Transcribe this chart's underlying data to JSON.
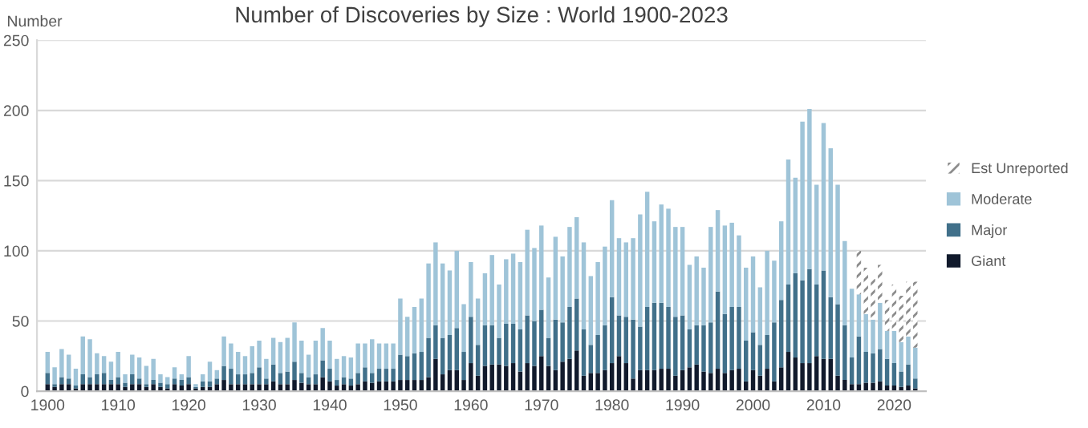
{
  "chart_data": {
    "type": "bar",
    "stacked": true,
    "title": "Number of Discoveries by Size : World 1900-2023",
    "ylabel": "Number",
    "x": [
      1900,
      1901,
      1902,
      1903,
      1904,
      1905,
      1906,
      1907,
      1908,
      1909,
      1910,
      1911,
      1912,
      1913,
      1914,
      1915,
      1916,
      1917,
      1918,
      1919,
      1920,
      1921,
      1922,
      1923,
      1924,
      1925,
      1926,
      1927,
      1928,
      1929,
      1930,
      1931,
      1932,
      1933,
      1934,
      1935,
      1936,
      1937,
      1938,
      1939,
      1940,
      1941,
      1942,
      1943,
      1944,
      1945,
      1946,
      1947,
      1948,
      1949,
      1950,
      1951,
      1952,
      1953,
      1954,
      1955,
      1956,
      1957,
      1958,
      1959,
      1960,
      1961,
      1962,
      1963,
      1964,
      1965,
      1966,
      1967,
      1968,
      1969,
      1970,
      1971,
      1972,
      1973,
      1974,
      1975,
      1976,
      1977,
      1978,
      1979,
      1980,
      1981,
      1982,
      1983,
      1984,
      1985,
      1986,
      1987,
      1988,
      1989,
      1990,
      1991,
      1992,
      1993,
      1994,
      1995,
      1996,
      1997,
      1998,
      1999,
      2000,
      2001,
      2002,
      2003,
      2004,
      2005,
      2006,
      2007,
      2008,
      2009,
      2010,
      2011,
      2012,
      2013,
      2014,
      2015,
      2016,
      2017,
      2018,
      2019,
      2020,
      2021,
      2022,
      2023
    ],
    "series": [
      {
        "name": "Giant",
        "color": "#111a2c",
        "values": [
          5,
          3,
          5,
          5,
          2,
          5,
          5,
          5,
          5,
          5,
          5,
          3,
          5,
          5,
          3,
          5,
          3,
          2,
          5,
          4,
          5,
          2,
          3,
          3,
          5,
          8,
          5,
          5,
          5,
          5,
          5,
          5,
          7,
          5,
          5,
          8,
          6,
          5,
          5,
          10,
          7,
          4,
          5,
          4,
          5,
          7,
          6,
          7,
          7,
          7,
          8,
          8,
          8,
          8,
          10,
          23,
          12,
          15,
          15,
          8,
          20,
          11,
          18,
          19,
          19,
          18,
          20,
          14,
          20,
          18,
          25,
          18,
          15,
          21,
          23,
          29,
          11,
          13,
          13,
          15,
          20,
          25,
          20,
          9,
          15,
          15,
          15,
          16,
          16,
          11,
          15,
          17,
          19,
          14,
          13,
          16,
          13,
          15,
          16,
          7,
          15,
          11,
          16,
          7,
          17,
          28,
          24,
          20,
          20,
          25,
          23,
          23,
          11,
          8,
          5,
          5,
          6,
          6,
          7,
          4,
          4,
          3,
          4,
          2
        ]
      },
      {
        "name": "Major",
        "color": "#41708a",
        "values": [
          8,
          2,
          5,
          4,
          2,
          7,
          5,
          7,
          8,
          3,
          5,
          3,
          7,
          4,
          2,
          3,
          3,
          3,
          4,
          4,
          5,
          1,
          4,
          4,
          4,
          10,
          11,
          7,
          7,
          8,
          12,
          4,
          12,
          8,
          9,
          13,
          7,
          5,
          7,
          12,
          9,
          4,
          5,
          5,
          8,
          10,
          7,
          9,
          9,
          9,
          18,
          17,
          19,
          20,
          28,
          24,
          26,
          25,
          30,
          20,
          33,
          22,
          29,
          28,
          19,
          30,
          28,
          30,
          34,
          32,
          33,
          20,
          36,
          28,
          37,
          37,
          33,
          20,
          27,
          32,
          47,
          29,
          33,
          42,
          31,
          45,
          48,
          47,
          44,
          42,
          39,
          27,
          28,
          33,
          36,
          55,
          42,
          45,
          44,
          29,
          27,
          22,
          24,
          42,
          48,
          48,
          60,
          59,
          67,
          51,
          63,
          44,
          51,
          39,
          19,
          34,
          22,
          21,
          23,
          19,
          16,
          11,
          15,
          7
        ]
      },
      {
        "name": "Moderate",
        "color": "#9fc4d8",
        "values": [
          15,
          12,
          20,
          17,
          12,
          27,
          27,
          15,
          12,
          13,
          18,
          6,
          14,
          15,
          13,
          15,
          6,
          5,
          8,
          4,
          15,
          2,
          5,
          14,
          6,
          21,
          18,
          16,
          13,
          19,
          19,
          14,
          19,
          22,
          24,
          28,
          23,
          16,
          24,
          23,
          20,
          15,
          15,
          15,
          21,
          17,
          24,
          18,
          18,
          18,
          40,
          28,
          33,
          38,
          53,
          59,
          53,
          46,
          55,
          34,
          39,
          33,
          37,
          50,
          38,
          46,
          50,
          48,
          61,
          52,
          60,
          43,
          59,
          47,
          57,
          58,
          62,
          49,
          52,
          56,
          69,
          55,
          53,
          58,
          80,
          82,
          58,
          70,
          70,
          64,
          63,
          46,
          49,
          41,
          68,
          58,
          63,
          60,
          51,
          52,
          54,
          41,
          60,
          44,
          56,
          89,
          68,
          113,
          114,
          71,
          105,
          106,
          85,
          60,
          49,
          30,
          27,
          24,
          33,
          20,
          23,
          21,
          20,
          22
        ]
      },
      {
        "name": "Est Unreported",
        "color": "#8c8c8c",
        "values": [
          null,
          null,
          null,
          null,
          null,
          null,
          null,
          null,
          null,
          null,
          null,
          null,
          null,
          null,
          null,
          null,
          null,
          null,
          null,
          null,
          null,
          null,
          null,
          null,
          null,
          null,
          null,
          null,
          null,
          null,
          null,
          null,
          null,
          null,
          null,
          null,
          null,
          null,
          null,
          null,
          null,
          null,
          null,
          null,
          null,
          null,
          null,
          null,
          null,
          null,
          null,
          null,
          null,
          null,
          null,
          null,
          null,
          null,
          null,
          null,
          null,
          null,
          null,
          null,
          null,
          null,
          null,
          null,
          null,
          null,
          null,
          null,
          null,
          null,
          null,
          null,
          null,
          null,
          null,
          null,
          null,
          null,
          null,
          null,
          null,
          null,
          null,
          null,
          null,
          null,
          null,
          null,
          null,
          null,
          null,
          null,
          null,
          null,
          null,
          null,
          null,
          null,
          null,
          null,
          null,
          null,
          null,
          null,
          null,
          null,
          null,
          null,
          null,
          null,
          null,
          31,
          33,
          29,
          27,
          22,
          33,
          33,
          39,
          47
        ]
      }
    ],
    "xlim": [
      1898.5,
      2024.5
    ],
    "xticks": [
      1900,
      1910,
      1920,
      1930,
      1940,
      1950,
      1960,
      1970,
      1980,
      1990,
      2000,
      2010,
      2020
    ],
    "ylim": [
      0,
      250
    ],
    "yticks": [
      0,
      50,
      100,
      150,
      200,
      250
    ],
    "grid": "y",
    "legend": "right"
  }
}
